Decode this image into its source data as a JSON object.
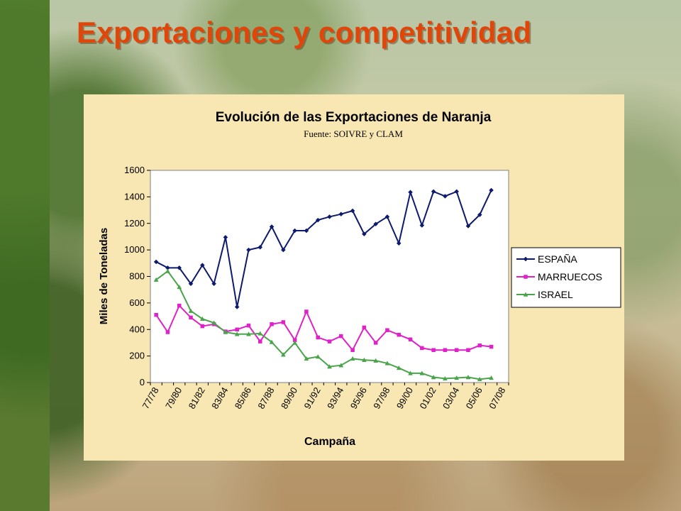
{
  "slide": {
    "title": "Exportaciones y competitividad"
  },
  "chart_data": {
    "type": "line",
    "title": "Evolución de las Exportaciones de Naranja",
    "subtitle": "Fuente: SOIVRE y CLAM",
    "xlabel": "Campaña",
    "ylabel": "Miles de Toneladas",
    "ylim": [
      0,
      1600
    ],
    "yticks": [
      0,
      200,
      400,
      600,
      800,
      1000,
      1200,
      1400,
      1600
    ],
    "grid": false,
    "legend_position": "right",
    "categories": [
      "77/78",
      "78/79",
      "79/80",
      "80/81",
      "81/82",
      "82/83",
      "83/84",
      "84/85",
      "85/86",
      "86/87",
      "87/88",
      "88/89",
      "89/90",
      "90/91",
      "91/92",
      "92/93",
      "93/94",
      "94/95",
      "95/96",
      "96/97",
      "97/98",
      "98/99",
      "99/00",
      "00/01",
      "01/02",
      "02/03",
      "03/04",
      "04/05",
      "05/06",
      "06/07",
      "07/08"
    ],
    "tick_labels": [
      "77/78",
      "",
      "79/80",
      "",
      "81/82",
      "",
      "83/84",
      "",
      "85/86",
      "",
      "87/88",
      "",
      "89/90",
      "",
      "91/92",
      "",
      "93/94",
      "",
      "95/96",
      "",
      "97/98",
      "",
      "99/00",
      "",
      "01/02",
      "",
      "03/04",
      "",
      "05/06",
      "",
      "07/08"
    ],
    "series": [
      {
        "name": "ESPAÑA",
        "color": "#0d1a6e",
        "marker": "diamond",
        "values": [
          910,
          865,
          865,
          745,
          885,
          745,
          1095,
          570,
          1000,
          1020,
          1175,
          1000,
          1145,
          1145,
          1225,
          1250,
          1270,
          1295,
          1120,
          1195,
          1250,
          1050,
          1435,
          1185,
          1440,
          1405,
          1440,
          1180,
          1265,
          1450,
          null
        ]
      },
      {
        "name": "MARRUECOS",
        "color": "#e020c8",
        "marker": "square",
        "values": [
          510,
          380,
          580,
          490,
          425,
          440,
          385,
          400,
          430,
          310,
          440,
          455,
          320,
          535,
          340,
          310,
          350,
          245,
          415,
          300,
          395,
          360,
          325,
          260,
          245,
          245,
          245,
          245,
          280,
          270,
          null
        ]
      },
      {
        "name": "ISRAEL",
        "color": "#4aa54a",
        "marker": "triangle",
        "values": [
          775,
          840,
          720,
          540,
          480,
          450,
          380,
          365,
          365,
          370,
          305,
          210,
          300,
          180,
          195,
          120,
          130,
          180,
          170,
          165,
          145,
          110,
          70,
          70,
          40,
          30,
          35,
          40,
          25,
          35,
          null
        ]
      }
    ]
  }
}
